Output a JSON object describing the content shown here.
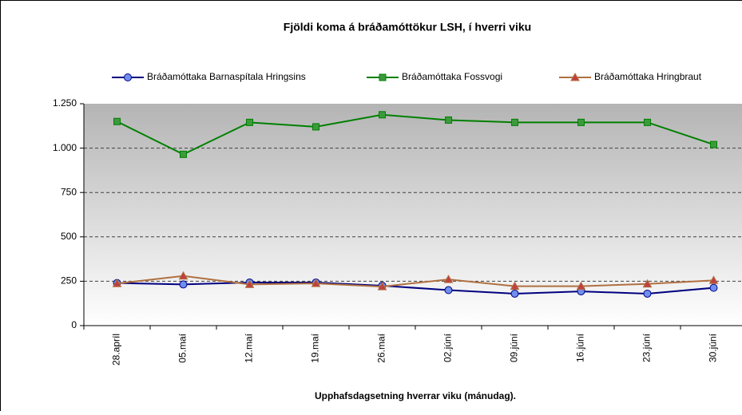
{
  "chart_data": {
    "type": "line",
    "title": "Fjöldi koma á bráðamóttökur LSH, í hverri viku",
    "x_label": "Upphafsdagsetning hverrar viku (mánudag).",
    "categories": [
      "28.apríl",
      "05.maí",
      "12.maí",
      "19.maí",
      "26.maí",
      "02.júní",
      "09.júní",
      "16.júní",
      "23.júní",
      "30.júní"
    ],
    "series": [
      {
        "name": "Bráðamóttaka Barnaspítala Hringsins",
        "color": "#000080",
        "marker_color": "#6f8ff0",
        "marker": "circle",
        "values": [
          240,
          232,
          243,
          243,
          225,
          200,
          180,
          193,
          180,
          213
        ]
      },
      {
        "name": "Bráðamóttaka Fossvogi",
        "color": "#008000",
        "marker_color": "#3c9a3c",
        "marker": "square",
        "values": [
          1150,
          965,
          1145,
          1120,
          1188,
          1158,
          1145,
          1145,
          1145,
          1020
        ]
      },
      {
        "name": "Bráðamóttaka Hringbraut",
        "color": "#b07040",
        "marker_color": "#c04040",
        "marker": "triangle",
        "values": [
          237,
          280,
          232,
          238,
          220,
          260,
          222,
          222,
          235,
          255
        ]
      }
    ],
    "ylim": [
      0,
      1250
    ],
    "yticks": [
      0,
      250,
      500,
      750,
      {
        "value": 1000,
        "label": "1.000"
      },
      {
        "value": 1250,
        "label": "1.250"
      }
    ],
    "grid": true,
    "legend": "top"
  }
}
